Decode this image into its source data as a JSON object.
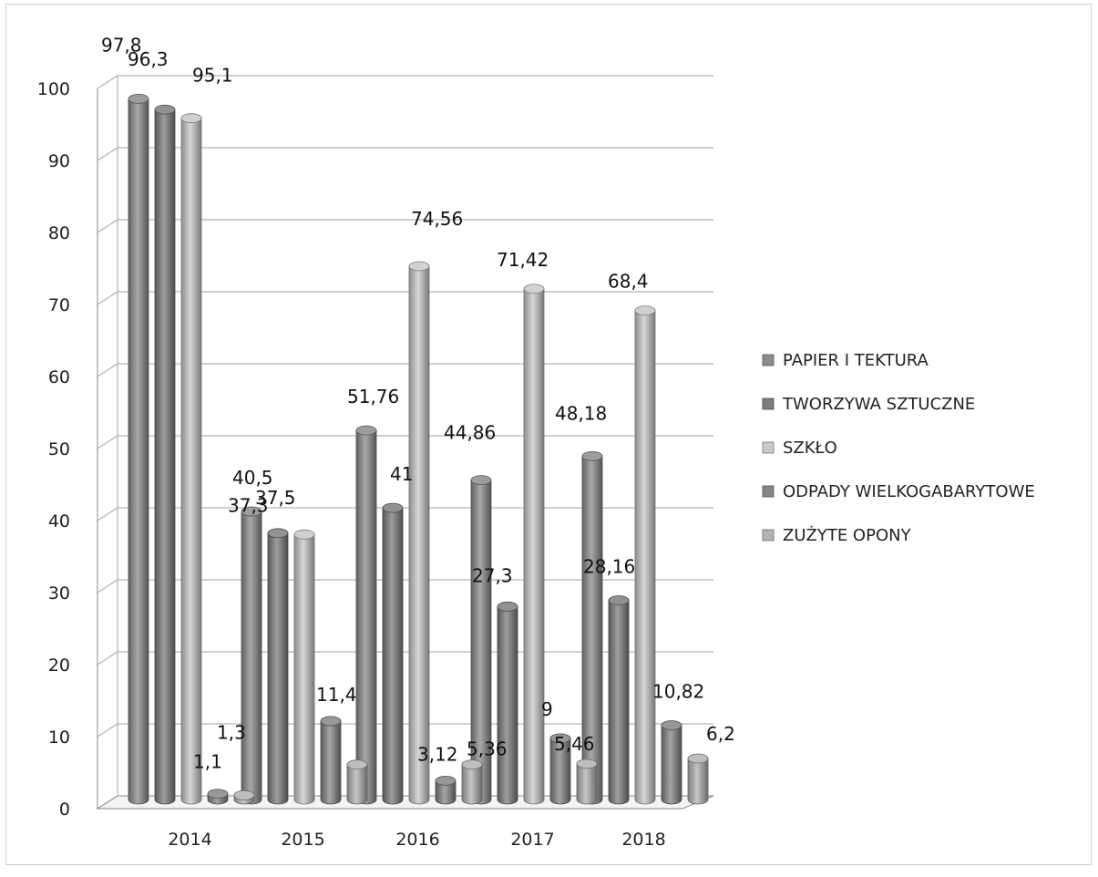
{
  "chart_data": {
    "type": "bar",
    "title": "",
    "xlabel": "",
    "ylabel": "",
    "ylim": [
      0,
      100
    ],
    "yticks": [
      0,
      10,
      20,
      30,
      40,
      50,
      60,
      70,
      80,
      90,
      100
    ],
    "grid": true,
    "legend_position": "right",
    "categories": [
      "2014",
      "2015",
      "2016",
      "2017",
      "2018"
    ],
    "series": [
      {
        "name": "PAPIER I TEKTURA",
        "color": "#8c8c8c",
        "values": [
          97.8,
          40.5,
          51.76,
          44.86,
          48.18
        ],
        "labels": [
          "97,8",
          "40,5",
          "51,76",
          "44,86",
          "48,18"
        ]
      },
      {
        "name": "TWORZYWA SZTUCZNE",
        "color": "#7d7d7d",
        "values": [
          96.3,
          37.5,
          41,
          27.3,
          28.16
        ],
        "labels": [
          "96,3",
          "37,5",
          "41",
          "27,3",
          "28,16"
        ]
      },
      {
        "name": "SZKŁO",
        "color": "#c9c9c9",
        "values": [
          95.1,
          37.3,
          74.56,
          71.42,
          68.4
        ],
        "labels": [
          "95,1",
          "37,3",
          "74,56",
          "71,42",
          "68,4"
        ]
      },
      {
        "name": "ODPADY WIELKOGABARYTOWE",
        "color": "#858585",
        "values": [
          1.3,
          11.4,
          3.12,
          9,
          10.82
        ],
        "labels": [
          "1,3",
          "11,4",
          "3,12",
          "9",
          "10,82"
        ]
      },
      {
        "name": "ZUŻYTE OPONY",
        "color": "#b3b3b3",
        "values": [
          1.1,
          5.36,
          5.36,
          5.46,
          6.2
        ],
        "labels": [
          "1,1",
          "",
          "5,36",
          "5,46",
          "6,2"
        ]
      }
    ]
  }
}
